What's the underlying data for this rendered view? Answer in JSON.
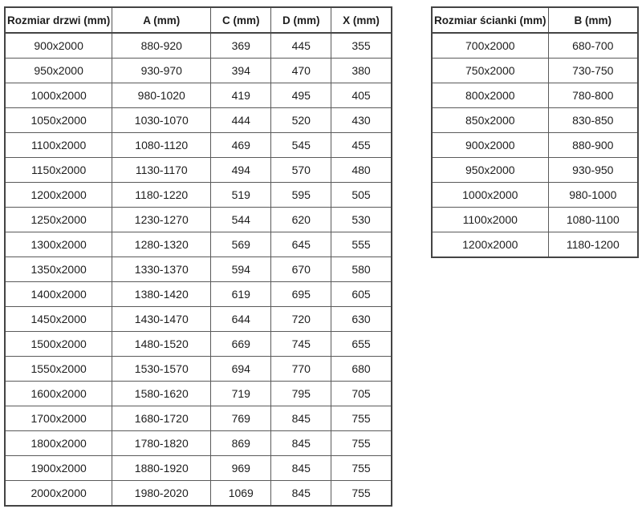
{
  "tables": [
    {
      "name": "door-size-table",
      "headers": [
        "Rozmiar drzwi (mm)",
        "A (mm)",
        "C (mm)",
        "D (mm)",
        "X (mm)"
      ],
      "rows": [
        [
          "900x2000",
          "880-920",
          "369",
          "445",
          "355"
        ],
        [
          "950x2000",
          "930-970",
          "394",
          "470",
          "380"
        ],
        [
          "1000x2000",
          "980-1020",
          "419",
          "495",
          "405"
        ],
        [
          "1050x2000",
          "1030-1070",
          "444",
          "520",
          "430"
        ],
        [
          "1100x2000",
          "1080-1120",
          "469",
          "545",
          "455"
        ],
        [
          "1150x2000",
          "1130-1170",
          "494",
          "570",
          "480"
        ],
        [
          "1200x2000",
          "1180-1220",
          "519",
          "595",
          "505"
        ],
        [
          "1250x2000",
          "1230-1270",
          "544",
          "620",
          "530"
        ],
        [
          "1300x2000",
          "1280-1320",
          "569",
          "645",
          "555"
        ],
        [
          "1350x2000",
          "1330-1370",
          "594",
          "670",
          "580"
        ],
        [
          "1400x2000",
          "1380-1420",
          "619",
          "695",
          "605"
        ],
        [
          "1450x2000",
          "1430-1470",
          "644",
          "720",
          "630"
        ],
        [
          "1500x2000",
          "1480-1520",
          "669",
          "745",
          "655"
        ],
        [
          "1550x2000",
          "1530-1570",
          "694",
          "770",
          "680"
        ],
        [
          "1600x2000",
          "1580-1620",
          "719",
          "795",
          "705"
        ],
        [
          "1700x2000",
          "1680-1720",
          "769",
          "845",
          "755"
        ],
        [
          "1800x2000",
          "1780-1820",
          "869",
          "845",
          "755"
        ],
        [
          "1900x2000",
          "1880-1920",
          "969",
          "845",
          "755"
        ],
        [
          "2000x2000",
          "1980-2020",
          "1069",
          "845",
          "755"
        ]
      ]
    },
    {
      "name": "wall-size-table",
      "headers": [
        "Rozmiar ścianki (mm)",
        "B (mm)"
      ],
      "rows": [
        [
          "700x2000",
          "680-700"
        ],
        [
          "750x2000",
          "730-750"
        ],
        [
          "800x2000",
          "780-800"
        ],
        [
          "850x2000",
          "830-850"
        ],
        [
          "900x2000",
          "880-900"
        ],
        [
          "950x2000",
          "930-950"
        ],
        [
          "1000x2000",
          "980-1000"
        ],
        [
          "1100x2000",
          "1080-1100"
        ],
        [
          "1200x2000",
          "1180-1200"
        ]
      ]
    }
  ],
  "colors": {
    "background": "#ffffff",
    "border": "#555555",
    "text": "#1d1d1d"
  }
}
